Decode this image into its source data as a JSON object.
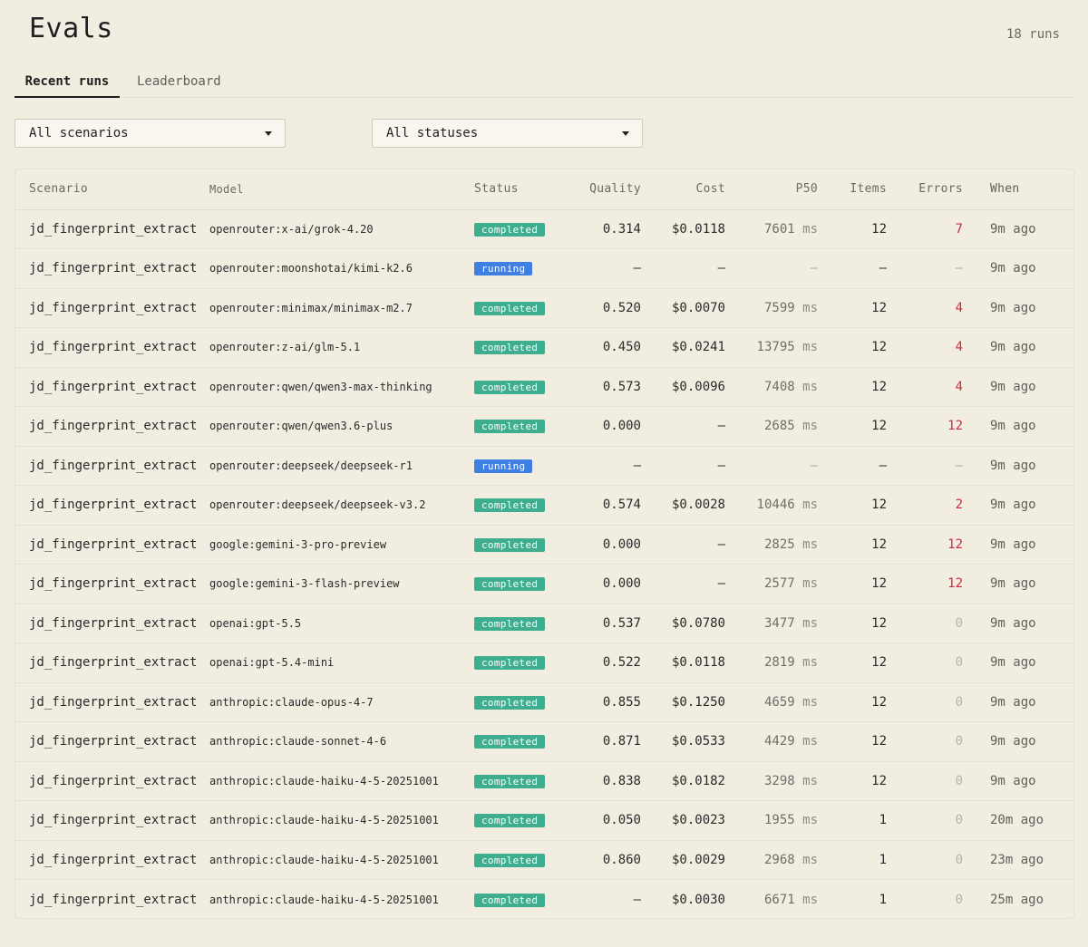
{
  "page": {
    "title": "Evals",
    "run_count": "18 runs"
  },
  "tabs": {
    "recent": "Recent runs",
    "leaderboard": "Leaderboard"
  },
  "filters": {
    "scenario": "All scenarios",
    "status": "All statuses"
  },
  "table": {
    "headers": {
      "scenario": "Scenario",
      "model": "Model",
      "status": "Status",
      "quality": "Quality",
      "cost": "Cost",
      "p50": "P50",
      "items": "Items",
      "errors": "Errors",
      "when": "When"
    },
    "unit_ms": "ms",
    "rows": [
      {
        "scenario": "jd_fingerprint_extract",
        "model": "openrouter:x-ai/grok-4.20",
        "status": "completed",
        "quality": "0.314",
        "cost": "$0.0118",
        "p50": "7601",
        "items": "12",
        "errors": "7",
        "when": "9m ago"
      },
      {
        "scenario": "jd_fingerprint_extract",
        "model": "openrouter:moonshotai/kimi-k2.6",
        "status": "running",
        "quality": "—",
        "cost": "—",
        "p50": "—",
        "items": "—",
        "errors": "—",
        "when": "9m ago"
      },
      {
        "scenario": "jd_fingerprint_extract",
        "model": "openrouter:minimax/minimax-m2.7",
        "status": "completed",
        "quality": "0.520",
        "cost": "$0.0070",
        "p50": "7599",
        "items": "12",
        "errors": "4",
        "when": "9m ago"
      },
      {
        "scenario": "jd_fingerprint_extract",
        "model": "openrouter:z-ai/glm-5.1",
        "status": "completed",
        "quality": "0.450",
        "cost": "$0.0241",
        "p50": "13795",
        "items": "12",
        "errors": "4",
        "when": "9m ago"
      },
      {
        "scenario": "jd_fingerprint_extract",
        "model": "openrouter:qwen/qwen3-max-thinking",
        "status": "completed",
        "quality": "0.573",
        "cost": "$0.0096",
        "p50": "7408",
        "items": "12",
        "errors": "4",
        "when": "9m ago"
      },
      {
        "scenario": "jd_fingerprint_extract",
        "model": "openrouter:qwen/qwen3.6-plus",
        "status": "completed",
        "quality": "0.000",
        "cost": "—",
        "p50": "2685",
        "items": "12",
        "errors": "12",
        "when": "9m ago"
      },
      {
        "scenario": "jd_fingerprint_extract",
        "model": "openrouter:deepseek/deepseek-r1",
        "status": "running",
        "quality": "—",
        "cost": "—",
        "p50": "—",
        "items": "—",
        "errors": "—",
        "when": "9m ago"
      },
      {
        "scenario": "jd_fingerprint_extract",
        "model": "openrouter:deepseek/deepseek-v3.2",
        "status": "completed",
        "quality": "0.574",
        "cost": "$0.0028",
        "p50": "10446",
        "items": "12",
        "errors": "2",
        "when": "9m ago"
      },
      {
        "scenario": "jd_fingerprint_extract",
        "model": "google:gemini-3-pro-preview",
        "status": "completed",
        "quality": "0.000",
        "cost": "—",
        "p50": "2825",
        "items": "12",
        "errors": "12",
        "when": "9m ago"
      },
      {
        "scenario": "jd_fingerprint_extract",
        "model": "google:gemini-3-flash-preview",
        "status": "completed",
        "quality": "0.000",
        "cost": "—",
        "p50": "2577",
        "items": "12",
        "errors": "12",
        "when": "9m ago"
      },
      {
        "scenario": "jd_fingerprint_extract",
        "model": "openai:gpt-5.5",
        "status": "completed",
        "quality": "0.537",
        "cost": "$0.0780",
        "p50": "3477",
        "items": "12",
        "errors": "0",
        "when": "9m ago"
      },
      {
        "scenario": "jd_fingerprint_extract",
        "model": "openai:gpt-5.4-mini",
        "status": "completed",
        "quality": "0.522",
        "cost": "$0.0118",
        "p50": "2819",
        "items": "12",
        "errors": "0",
        "when": "9m ago"
      },
      {
        "scenario": "jd_fingerprint_extract",
        "model": "anthropic:claude-opus-4-7",
        "status": "completed",
        "quality": "0.855",
        "cost": "$0.1250",
        "p50": "4659",
        "items": "12",
        "errors": "0",
        "when": "9m ago"
      },
      {
        "scenario": "jd_fingerprint_extract",
        "model": "anthropic:claude-sonnet-4-6",
        "status": "completed",
        "quality": "0.871",
        "cost": "$0.0533",
        "p50": "4429",
        "items": "12",
        "errors": "0",
        "when": "9m ago"
      },
      {
        "scenario": "jd_fingerprint_extract",
        "model": "anthropic:claude-haiku-4-5-20251001",
        "status": "completed",
        "quality": "0.838",
        "cost": "$0.0182",
        "p50": "3298",
        "items": "12",
        "errors": "0",
        "when": "9m ago"
      },
      {
        "scenario": "jd_fingerprint_extract",
        "model": "anthropic:claude-haiku-4-5-20251001",
        "status": "completed",
        "quality": "0.050",
        "cost": "$0.0023",
        "p50": "1955",
        "items": "1",
        "errors": "0",
        "when": "20m ago"
      },
      {
        "scenario": "jd_fingerprint_extract",
        "model": "anthropic:claude-haiku-4-5-20251001",
        "status": "completed",
        "quality": "0.860",
        "cost": "$0.0029",
        "p50": "2968",
        "items": "1",
        "errors": "0",
        "when": "23m ago"
      },
      {
        "scenario": "jd_fingerprint_extract",
        "model": "anthropic:claude-haiku-4-5-20251001",
        "status": "completed",
        "quality": "—",
        "cost": "$0.0030",
        "p50": "6671",
        "items": "1",
        "errors": "0",
        "when": "25m ago"
      }
    ]
  },
  "colors": {
    "background": "#f1ede1",
    "completed": "#3fae8e",
    "running": "#3f7fe3",
    "error": "#d1283f"
  }
}
